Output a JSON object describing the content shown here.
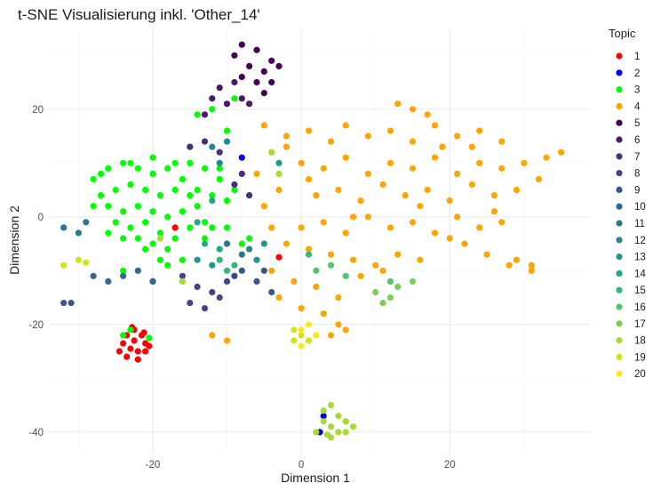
{
  "chart_data": {
    "type": "scatter",
    "title": "t-SNE Visualisierung inkl. 'Other_14'",
    "xlabel": "Dimension 1",
    "ylabel": "Dimension 2",
    "xlim": [
      -34,
      39
    ],
    "ylim": [
      -44,
      35
    ],
    "xticks": [
      -20,
      0,
      20
    ],
    "yticks": [
      -40,
      -20,
      0,
      20
    ],
    "grid": true,
    "legend": {
      "title": "Topic",
      "placement": "right",
      "entries": [
        {
          "label": "1",
          "color": "#ff0000"
        },
        {
          "label": "2",
          "color": "#0000ff"
        },
        {
          "label": "3",
          "color": "#00ff00"
        },
        {
          "label": "4",
          "color": "#ffa500"
        },
        {
          "label": "5",
          "color": "#440154"
        },
        {
          "label": "6",
          "color": "#481a6c"
        },
        {
          "label": "7",
          "color": "#472f7d"
        },
        {
          "label": "8",
          "color": "#414487"
        },
        {
          "label": "9",
          "color": "#39568c"
        },
        {
          "label": "10",
          "color": "#31688e"
        },
        {
          "label": "11",
          "color": "#2a788e"
        },
        {
          "label": "12",
          "color": "#23888e"
        },
        {
          "label": "13",
          "color": "#1f988b"
        },
        {
          "label": "14",
          "color": "#22a884"
        },
        {
          "label": "15",
          "color": "#35b779"
        },
        {
          "label": "16",
          "color": "#54c568"
        },
        {
          "label": "17",
          "color": "#7ad151"
        },
        {
          "label": "18",
          "color": "#a5db36"
        },
        {
          "label": "19",
          "color": "#d2e21b"
        },
        {
          "label": "20",
          "color": "#fde725"
        }
      ]
    },
    "series": [
      {
        "name": "1",
        "color": "#ff0000",
        "points": [
          [
            -22.5,
            -21
          ],
          [
            -23.5,
            -22
          ],
          [
            -21.5,
            -22
          ],
          [
            -24,
            -23.5
          ],
          [
            -22.5,
            -23
          ],
          [
            -21,
            -23.5
          ],
          [
            -23,
            -24.5
          ],
          [
            -22,
            -25
          ],
          [
            -24.5,
            -25
          ],
          [
            -21,
            -25
          ],
          [
            -23.5,
            -26
          ],
          [
            -22,
            -26.5
          ],
          [
            -20.5,
            -24
          ],
          [
            -22.8,
            -20.5
          ],
          [
            -21.2,
            -21.5
          ],
          [
            -17,
            -2
          ],
          [
            -3,
            -7.5
          ]
        ]
      },
      {
        "name": "2",
        "color": "#0000ff",
        "points": [
          [
            -8,
            11
          ],
          [
            -20,
            -12
          ],
          [
            3,
            -37
          ],
          [
            2.5,
            -40
          ]
        ]
      },
      {
        "name": "3",
        "color": "#00ff00",
        "points": [
          [
            -28,
            7
          ],
          [
            -26,
            9
          ],
          [
            -24,
            10
          ],
          [
            -22,
            9
          ],
          [
            -20,
            8
          ],
          [
            -18,
            9
          ],
          [
            -16,
            7
          ],
          [
            -27,
            4
          ],
          [
            -25,
            5
          ],
          [
            -23,
            6
          ],
          [
            -21,
            5
          ],
          [
            -19,
            4
          ],
          [
            -17,
            5
          ],
          [
            -15,
            4
          ],
          [
            -26,
            2
          ],
          [
            -24,
            1
          ],
          [
            -22,
            2
          ],
          [
            -20,
            1
          ],
          [
            -18,
            0
          ],
          [
            -16,
            1
          ],
          [
            -14,
            2
          ],
          [
            -25,
            -1
          ],
          [
            -23,
            -2
          ],
          [
            -21,
            -1
          ],
          [
            -19,
            -3
          ],
          [
            -17,
            -4
          ],
          [
            -15,
            -2
          ],
          [
            -13,
            -1
          ],
          [
            -22,
            -4
          ],
          [
            -20,
            -5
          ],
          [
            -18,
            -6
          ],
          [
            -24,
            -4
          ],
          [
            -19,
            -8
          ],
          [
            -16,
            -8
          ],
          [
            -13,
            -4
          ],
          [
            -12,
            -2
          ],
          [
            -14,
            5
          ],
          [
            -12,
            4
          ],
          [
            -10,
            3
          ],
          [
            -11,
            7
          ],
          [
            -13,
            9
          ],
          [
            -15,
            10
          ],
          [
            -17,
            10
          ],
          [
            -20,
            11
          ],
          [
            -23,
            10
          ],
          [
            -27,
            8
          ],
          [
            -28,
            2
          ],
          [
            -26,
            -3
          ],
          [
            -23,
            -21
          ],
          [
            -24,
            -22
          ],
          [
            -20.5,
            -22.5
          ],
          [
            -14,
            19
          ],
          [
            -12,
            20
          ],
          [
            -10,
            16
          ],
          [
            -9,
            22
          ],
          [
            -11,
            9
          ],
          [
            -9,
            5
          ],
          [
            -10,
            -2
          ],
          [
            -8,
            -5
          ],
          [
            -24,
            -10
          ],
          [
            -7,
            -4
          ],
          [
            -18,
            -9
          ],
          [
            -21,
            -6
          ]
        ]
      },
      {
        "name": "4",
        "color": "#ffa500",
        "points": [
          [
            -5,
            17
          ],
          [
            -2,
            15
          ],
          [
            1,
            16
          ],
          [
            4,
            14
          ],
          [
            6,
            17
          ],
          [
            9,
            15
          ],
          [
            12,
            16
          ],
          [
            15,
            14
          ],
          [
            18,
            17
          ],
          [
            21,
            15
          ],
          [
            24,
            16
          ],
          [
            27,
            14
          ],
          [
            0,
            10
          ],
          [
            3,
            9
          ],
          [
            6,
            11
          ],
          [
            9,
            8
          ],
          [
            12,
            10
          ],
          [
            15,
            9
          ],
          [
            18,
            11
          ],
          [
            21,
            8
          ],
          [
            24,
            10
          ],
          [
            27,
            9
          ],
          [
            30,
            10
          ],
          [
            33,
            11
          ],
          [
            35,
            12
          ],
          [
            2,
            4
          ],
          [
            5,
            5
          ],
          [
            8,
            3
          ],
          [
            11,
            6
          ],
          [
            14,
            4
          ],
          [
            17,
            5
          ],
          [
            20,
            3
          ],
          [
            23,
            6
          ],
          [
            26,
            4
          ],
          [
            29,
            5
          ],
          [
            32,
            7
          ],
          [
            0,
            -2
          ],
          [
            3,
            -1
          ],
          [
            6,
            -3
          ],
          [
            9,
            0
          ],
          [
            12,
            -2
          ],
          [
            15,
            -1
          ],
          [
            18,
            -3
          ],
          [
            21,
            0
          ],
          [
            24,
            -2
          ],
          [
            27,
            -1
          ],
          [
            -2,
            -5
          ],
          [
            1,
            -6
          ],
          [
            4,
            -7
          ],
          [
            7,
            -8
          ],
          [
            10,
            -9
          ],
          [
            13,
            -7
          ],
          [
            16,
            -8
          ],
          [
            22,
            -5
          ],
          [
            25,
            -7
          ],
          [
            28,
            -9
          ],
          [
            31,
            -10
          ],
          [
            -4,
            -10
          ],
          [
            -1,
            -12
          ],
          [
            2,
            -13
          ],
          [
            5,
            -15
          ],
          [
            8,
            -11
          ],
          [
            11,
            -10
          ],
          [
            -3,
            -15
          ],
          [
            0,
            -17
          ],
          [
            3,
            -18
          ],
          [
            5,
            -20
          ],
          [
            4,
            -22
          ],
          [
            6,
            -21
          ],
          [
            -10,
            -23
          ],
          [
            -12,
            -22
          ],
          [
            15,
            20
          ],
          [
            17,
            19
          ],
          [
            13,
            21
          ],
          [
            19,
            13
          ],
          [
            23,
            13
          ],
          [
            -5,
            2
          ],
          [
            -3,
            5
          ],
          [
            -6,
            8
          ],
          [
            -4,
            -2
          ],
          [
            31,
            -9
          ],
          [
            29,
            -8
          ],
          [
            20,
            -4
          ],
          [
            1,
            7
          ],
          [
            7,
            0
          ],
          [
            -2,
            13
          ],
          [
            16,
            2
          ],
          [
            26,
            1
          ]
        ]
      },
      {
        "name": "5",
        "color": "#440154",
        "points": [
          [
            -8,
            32
          ],
          [
            -6,
            31
          ],
          [
            -4,
            29
          ],
          [
            -7,
            28
          ],
          [
            -5,
            27
          ],
          [
            -3,
            28
          ],
          [
            -9,
            30
          ],
          [
            -6,
            25
          ],
          [
            -8,
            26
          ],
          [
            -4,
            25
          ],
          [
            -5,
            23
          ]
        ]
      },
      {
        "name": "6",
        "color": "#481a6c",
        "points": [
          [
            -12,
            22
          ],
          [
            -10,
            21
          ],
          [
            -8,
            22
          ],
          [
            -11,
            24
          ],
          [
            -9,
            25
          ],
          [
            -13,
            19
          ],
          [
            -7,
            21
          ]
        ]
      },
      {
        "name": "7",
        "color": "#472f7d",
        "points": [
          [
            -15,
            13
          ],
          [
            -13,
            14
          ],
          [
            -11,
            12
          ],
          [
            -9,
            6
          ],
          [
            -7,
            4
          ],
          [
            -8,
            8
          ]
        ]
      },
      {
        "name": "8",
        "color": "#414487",
        "points": [
          [
            -16,
            -11
          ],
          [
            -14,
            -13
          ],
          [
            -12,
            -14
          ],
          [
            -15,
            -16
          ],
          [
            -13,
            -17
          ],
          [
            -11,
            -15
          ],
          [
            -10,
            -12
          ],
          [
            -9,
            -11
          ]
        ]
      },
      {
        "name": "9",
        "color": "#39568c",
        "points": [
          [
            -6,
            -12
          ],
          [
            -5,
            -10
          ],
          [
            -4,
            -14
          ],
          [
            -31,
            -16
          ],
          [
            -32,
            -16
          ],
          [
            -8,
            -10
          ]
        ]
      },
      {
        "name": "10",
        "color": "#31688e",
        "points": [
          [
            -28,
            -11
          ],
          [
            -26,
            -12
          ],
          [
            -24,
            -11
          ],
          [
            -22,
            -10
          ],
          [
            -20,
            -12
          ]
        ]
      },
      {
        "name": "11",
        "color": "#2a788e",
        "points": [
          [
            -32,
            -2
          ],
          [
            -30,
            -3
          ],
          [
            -29,
            -1
          ],
          [
            -10,
            -5
          ],
          [
            -8,
            -7
          ]
        ]
      },
      {
        "name": "12",
        "color": "#23888e",
        "points": [
          [
            -12,
            13
          ],
          [
            -10,
            14
          ],
          [
            -11,
            10
          ],
          [
            -7,
            -6
          ]
        ]
      },
      {
        "name": "13",
        "color": "#1f988b",
        "points": [
          [
            -14,
            -8
          ],
          [
            -12,
            -9
          ],
          [
            -6,
            -8
          ],
          [
            -5,
            -5
          ],
          [
            -3,
            10
          ]
        ]
      },
      {
        "name": "14",
        "color": "#22a884",
        "points": [
          [
            -13,
            -5
          ],
          [
            -11,
            -6
          ],
          [
            -14,
            -1
          ],
          [
            -12,
            3
          ]
        ]
      },
      {
        "name": "15",
        "color": "#35b779",
        "points": [
          [
            -10,
            -10
          ],
          [
            -11,
            -8
          ],
          [
            -9,
            -9
          ],
          [
            1,
            -7
          ]
        ]
      },
      {
        "name": "16",
        "color": "#54c568",
        "points": [
          [
            2,
            -10
          ],
          [
            4,
            -9
          ],
          [
            6,
            -11
          ],
          [
            12,
            -12
          ]
        ]
      },
      {
        "name": "17",
        "color": "#7ad151",
        "points": [
          [
            10,
            -14
          ],
          [
            12,
            -15
          ],
          [
            13,
            -13
          ],
          [
            15,
            -12
          ],
          [
            11,
            -16
          ]
        ]
      },
      {
        "name": "18",
        "color": "#a5db36",
        "points": [
          [
            3,
            -38
          ],
          [
            4,
            -39
          ],
          [
            5,
            -40
          ],
          [
            6,
            -38
          ],
          [
            4,
            -41
          ],
          [
            3,
            -36
          ],
          [
            6,
            -40
          ],
          [
            5,
            -37
          ],
          [
            4,
            -35
          ],
          [
            7,
            -39
          ],
          [
            2,
            -40
          ],
          [
            3.5,
            -40.5
          ],
          [
            -3,
            8
          ],
          [
            -4,
            12
          ],
          [
            -19,
            -4
          ],
          [
            -16,
            -12
          ]
        ]
      },
      {
        "name": "19",
        "color": "#d2e21b",
        "points": [
          [
            -32,
            -9
          ],
          [
            -30,
            -8
          ],
          [
            -29,
            -8.5
          ],
          [
            -1,
            -21
          ],
          [
            0,
            -22
          ],
          [
            1,
            -23
          ],
          [
            -1,
            -23
          ]
        ]
      },
      {
        "name": "20",
        "color": "#fde725",
        "points": [
          [
            0,
            -21
          ],
          [
            1,
            -20
          ],
          [
            0,
            -24
          ],
          [
            2,
            -22
          ]
        ]
      }
    ]
  }
}
